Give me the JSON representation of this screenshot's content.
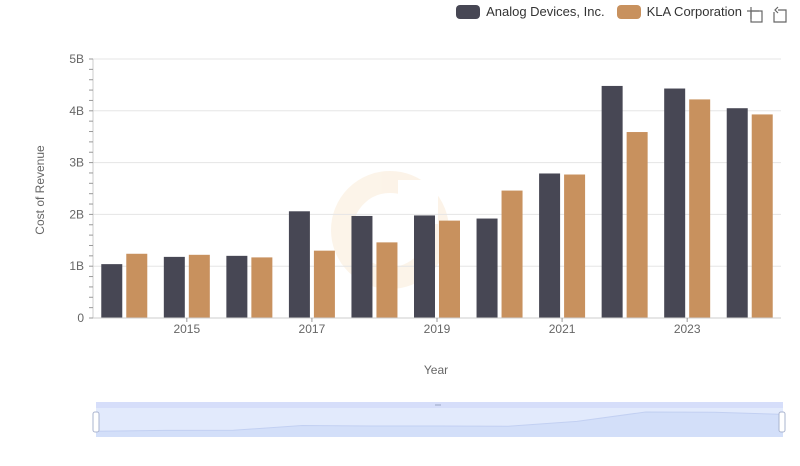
{
  "chart_data": {
    "type": "bar",
    "title": "",
    "xlabel": "Year",
    "ylabel": "Cost of Revenue",
    "ylim": [
      0,
      5000000000
    ],
    "y_ticks": [
      {
        "value": 0,
        "label": "0"
      },
      {
        "value": 1000000000,
        "label": "1B"
      },
      {
        "value": 2000000000,
        "label": "2B"
      },
      {
        "value": 3000000000,
        "label": "3B"
      },
      {
        "value": 4000000000,
        "label": "4B"
      },
      {
        "value": 5000000000,
        "label": "5B"
      }
    ],
    "categories": [
      "2014",
      "2015",
      "2016",
      "2017",
      "2018",
      "2019",
      "2020",
      "2021",
      "2022",
      "2023",
      "2024"
    ],
    "x_tick_labels": [
      "2015",
      "2017",
      "2019",
      "2021",
      "2023"
    ],
    "grid": true,
    "legend_position": "top-right",
    "series": [
      {
        "name": "Analog Devices, Inc.",
        "color": "#474754",
        "values": [
          1040000000,
          1180000000,
          1200000000,
          2060000000,
          1970000000,
          1980000000,
          1920000000,
          2790000000,
          4480000000,
          4430000000,
          4050000000
        ]
      },
      {
        "name": "KLA Corporation",
        "color": "#c8915e",
        "values": [
          1240000000,
          1220000000,
          1170000000,
          1300000000,
          1460000000,
          1880000000,
          2460000000,
          2770000000,
          3590000000,
          4220000000,
          3930000000
        ]
      }
    ]
  },
  "legend": {
    "items": [
      {
        "label": "Analog Devices, Inc.",
        "color": "#474754"
      },
      {
        "label": "KLA Corporation",
        "color": "#c8915e"
      }
    ]
  },
  "toolbar": {
    "zoom_icon": "zoom-select-icon",
    "reset_icon": "reset-zoom-icon"
  },
  "colors": {
    "grid": "#e5e5e5",
    "axis_text": "#666666",
    "slider_fill": "#dbe4fb",
    "slider_border": "#c5d0ef"
  }
}
